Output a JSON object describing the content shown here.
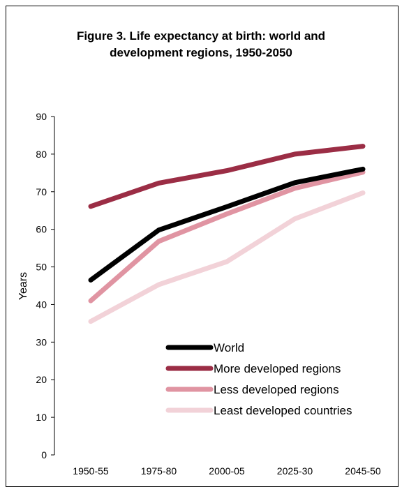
{
  "chart_data": {
    "type": "line",
    "title_line1": "Figure 3.  Life expectancy at birth: world and",
    "title_line2": "development regions, 1950-2050",
    "ylabel": "Years",
    "xlabel": "",
    "ylim": [
      0,
      90
    ],
    "yticks": [
      "0",
      "10",
      "20",
      "30",
      "40",
      "50",
      "60",
      "70",
      "80",
      "90"
    ],
    "categories": [
      "1950-55",
      "1975-80",
      "2000-05",
      "2025-30",
      "2045-50"
    ],
    "legend_position": "lower-right",
    "grid": false,
    "series": [
      {
        "name": "World",
        "color": "#000000",
        "values": [
          46.5,
          59.8,
          66.0,
          72.4,
          76.0
        ]
      },
      {
        "name": "More developed regions",
        "color": "#9b2d45",
        "values": [
          66.1,
          72.3,
          75.6,
          80.0,
          82.1
        ]
      },
      {
        "name": "Less developed regions",
        "color": "#e094a2",
        "values": [
          41.0,
          56.8,
          64.1,
          70.9,
          75.2
        ]
      },
      {
        "name": "Least developed countries",
        "color": "#f2d2d8",
        "values": [
          35.5,
          45.3,
          51.4,
          62.8,
          69.7
        ]
      }
    ]
  }
}
